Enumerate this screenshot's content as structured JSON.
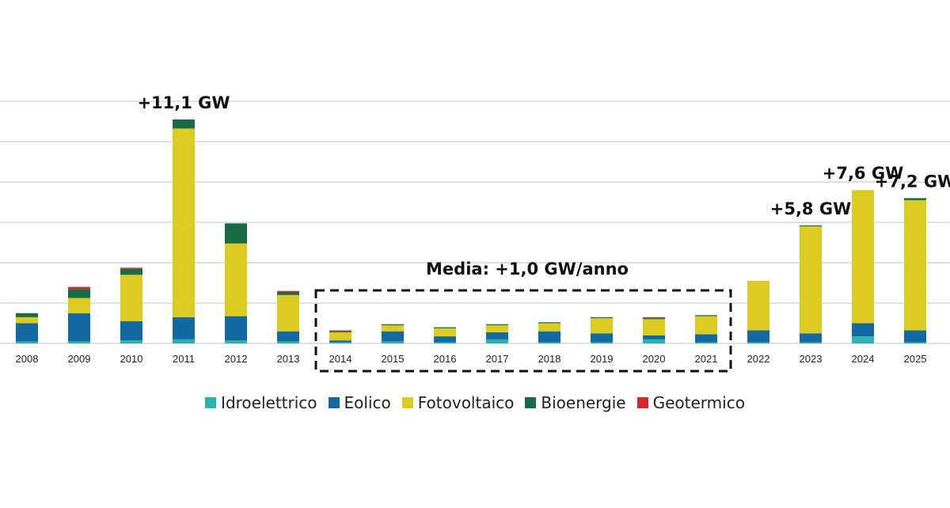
{
  "chart_data": {
    "type": "bar",
    "stacked": true,
    "grid": true,
    "legend_position": "bottom",
    "categories": [
      "2008",
      "2009",
      "2010",
      "2011",
      "2012",
      "2013",
      "2014",
      "2015",
      "2016",
      "2017",
      "2018",
      "2019",
      "2020",
      "2021",
      "2022",
      "2023",
      "2024",
      "2025"
    ],
    "ylim": [
      0,
      12
    ],
    "series": [
      {
        "name": "Idroelettrico",
        "color": "#2bb3b1",
        "values": [
          0.1,
          0.1,
          0.15,
          0.2,
          0.15,
          0.1,
          0.05,
          0.1,
          0.05,
          0.2,
          0.05,
          0.05,
          0.2,
          0.05,
          0.05,
          0.05,
          0.35,
          0.05
        ]
      },
      {
        "name": "Eolico",
        "color": "#136aa3",
        "values": [
          0.9,
          1.4,
          0.95,
          1.1,
          1.2,
          0.5,
          0.1,
          0.5,
          0.3,
          0.35,
          0.55,
          0.45,
          0.2,
          0.4,
          0.6,
          0.45,
          0.65,
          0.6
        ]
      },
      {
        "name": "Fotovoltaico",
        "color": "#dccb20",
        "values": [
          0.3,
          0.75,
          2.3,
          9.35,
          3.6,
          1.8,
          0.4,
          0.3,
          0.4,
          0.35,
          0.4,
          0.75,
          0.8,
          0.9,
          2.45,
          5.3,
          6.6,
          6.45
        ]
      },
      {
        "name": "Bioenergie",
        "color": "#1a6b45",
        "values": [
          0.2,
          0.45,
          0.3,
          0.45,
          1.0,
          0.15,
          0.05,
          0.05,
          0.05,
          0.05,
          0.05,
          0.05,
          0.05,
          0.05,
          0.0,
          0.05,
          0.0,
          0.1
        ]
      },
      {
        "name": "Geotermico",
        "color": "#d62828",
        "values": [
          0.0,
          0.1,
          0.05,
          0.0,
          0.0,
          0.05,
          0.05,
          0.0,
          0.0,
          0.0,
          0.0,
          0.0,
          0.05,
          0.0,
          0.0,
          0.0,
          0.0,
          0.0
        ]
      }
    ],
    "annotations": [
      {
        "category": "2011",
        "text": "+11,1 GW"
      },
      {
        "category": "2023",
        "text": "+5,8 GW"
      },
      {
        "category": "2024",
        "text": "+7,6 GW"
      },
      {
        "category": "2025",
        "text": "+7,2 GW"
      }
    ],
    "average_box": {
      "from": "2014",
      "to": "2021",
      "text": "Media: +1,0 GW/anno"
    }
  }
}
